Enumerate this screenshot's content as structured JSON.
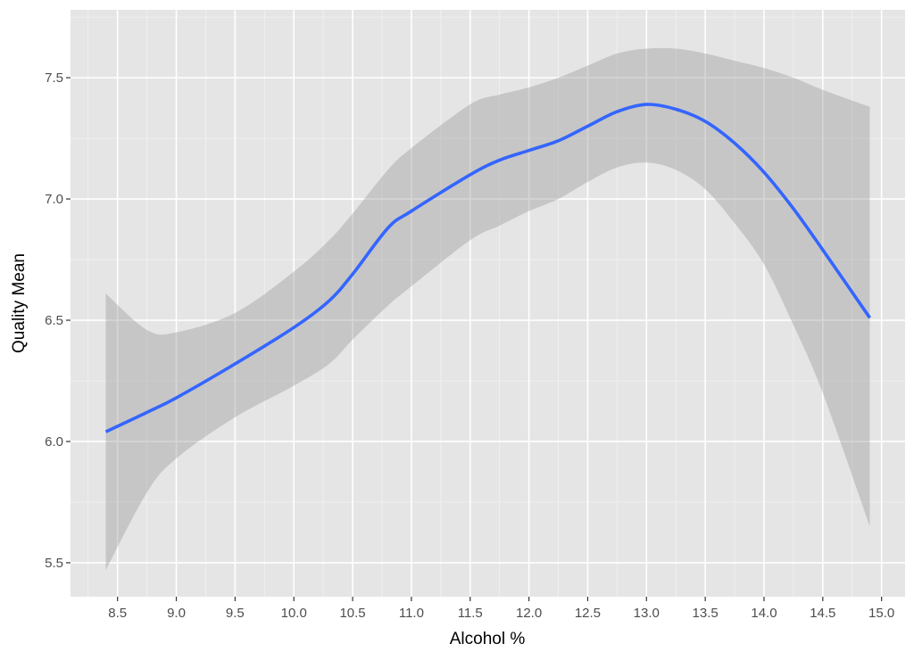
{
  "chart_data": {
    "type": "line",
    "title": "",
    "xlabel": "Alcohol %",
    "ylabel": "Quality Mean",
    "xlim": [
      8.1,
      15.2
    ],
    "ylim": [
      5.36,
      7.78
    ],
    "xticks": [
      "8.5",
      "9.0",
      "9.5",
      "10.0",
      "10.5",
      "11.0",
      "11.5",
      "12.0",
      "12.5",
      "13.0",
      "13.5",
      "14.0",
      "14.5",
      "15.0"
    ],
    "yticks": [
      "5.5",
      "6.0",
      "6.5",
      "7.0",
      "7.5"
    ],
    "grid": true,
    "legend": "none",
    "series": [
      {
        "style": "smooth line with confidence band",
        "x": [
          8.4,
          8.75,
          9.0,
          9.5,
          10.0,
          10.3,
          10.5,
          10.8,
          11.0,
          11.5,
          11.75,
          12.0,
          12.25,
          12.5,
          12.75,
          13.0,
          13.25,
          13.5,
          13.75,
          14.0,
          14.25,
          14.5,
          14.9
        ],
        "y": [
          6.04,
          6.12,
          6.18,
          6.32,
          6.47,
          6.58,
          6.69,
          6.88,
          6.95,
          7.1,
          7.16,
          7.2,
          7.24,
          7.3,
          7.36,
          7.39,
          7.37,
          7.32,
          7.23,
          7.11,
          6.96,
          6.79,
          6.51
        ],
        "lower": [
          5.47,
          5.79,
          5.93,
          6.1,
          6.23,
          6.32,
          6.42,
          6.56,
          6.64,
          6.83,
          6.89,
          6.95,
          7.0,
          7.07,
          7.13,
          7.15,
          7.12,
          7.04,
          6.9,
          6.73,
          6.48,
          6.2,
          5.65
        ],
        "upper": [
          6.61,
          6.46,
          6.45,
          6.53,
          6.7,
          6.83,
          6.94,
          7.12,
          7.21,
          7.39,
          7.43,
          7.46,
          7.5,
          7.55,
          7.6,
          7.62,
          7.62,
          7.6,
          7.57,
          7.54,
          7.5,
          7.45,
          7.38
        ]
      }
    ],
    "colors": {
      "panel": "#e5e5e5",
      "grid_major": "#ffffff",
      "grid_minor": "#f2f2f2",
      "line": "#3465ff",
      "band": "#999999"
    }
  }
}
